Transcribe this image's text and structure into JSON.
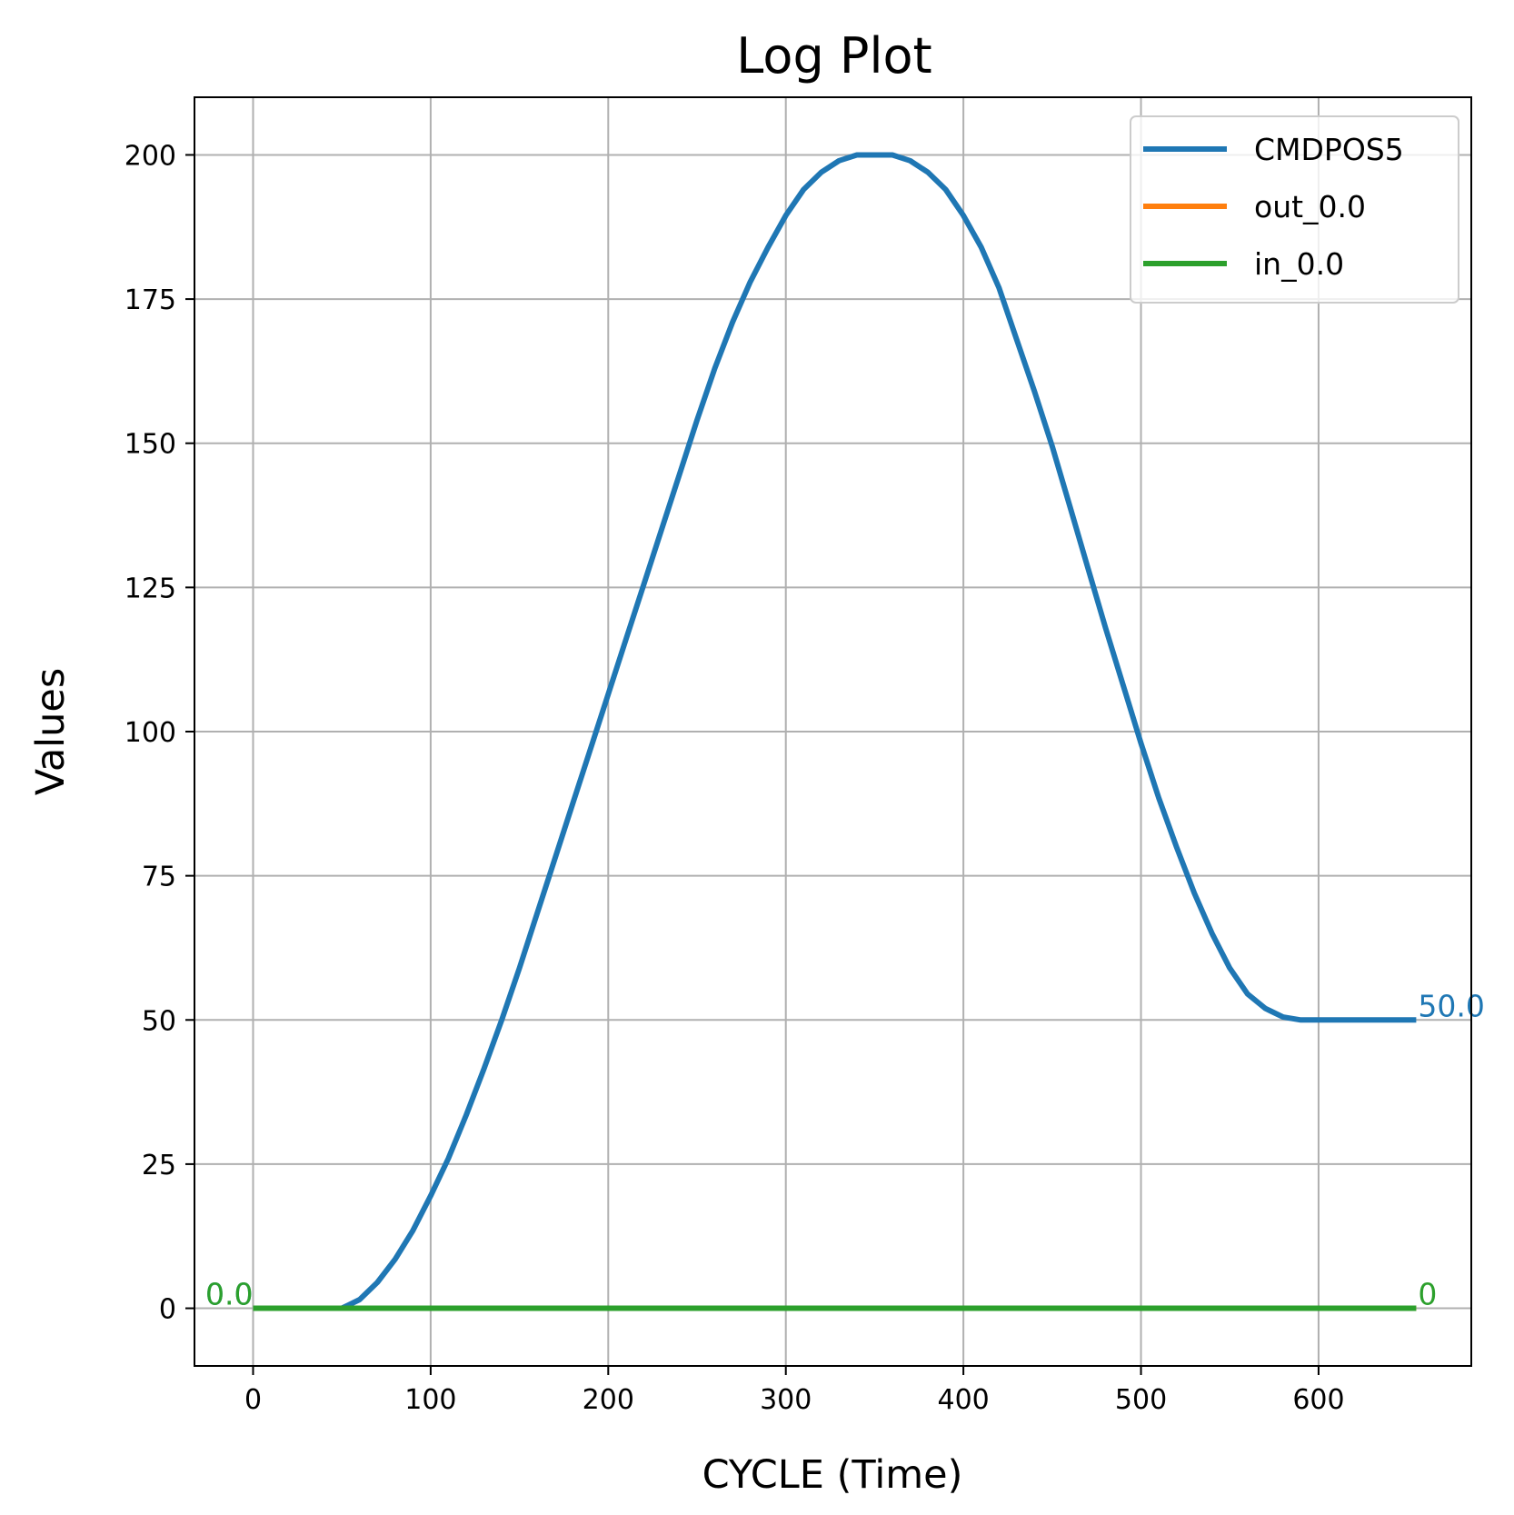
{
  "chart_data": {
    "type": "line",
    "title": "Log Plot",
    "xlabel": "CYCLE (Time)",
    "ylabel": "Values",
    "xlim": [
      -33,
      686
    ],
    "ylim": [
      -10,
      210
    ],
    "xticks": [
      0,
      100,
      200,
      300,
      400,
      500,
      600
    ],
    "yticks": [
      0,
      25,
      50,
      75,
      100,
      125,
      150,
      175,
      200
    ],
    "grid": true,
    "legend_position": "top-right",
    "series": [
      {
        "name": "CMDPOS5",
        "color": "#1f77b4",
        "x": [
          0,
          25,
          50,
          60,
          70,
          80,
          90,
          100,
          110,
          120,
          130,
          140,
          150,
          160,
          170,
          180,
          190,
          200,
          210,
          220,
          230,
          240,
          250,
          260,
          270,
          280,
          290,
          300,
          310,
          320,
          330,
          340,
          350,
          360,
          370,
          380,
          390,
          400,
          410,
          420,
          430,
          440,
          450,
          460,
          470,
          480,
          490,
          500,
          510,
          520,
          530,
          540,
          550,
          560,
          570,
          580,
          590,
          600,
          625,
          655
        ],
        "y": [
          0,
          0,
          0,
          1.5,
          4.5,
          8.5,
          13.5,
          19.5,
          26,
          33.5,
          41.5,
          50,
          59,
          68.5,
          78,
          87.5,
          97,
          106.5,
          116,
          125.5,
          135,
          144.5,
          154,
          163,
          171,
          178,
          184,
          189.5,
          194,
          197,
          199,
          200,
          200,
          200,
          199,
          197,
          194,
          189.5,
          184,
          177,
          168,
          159,
          149.5,
          139,
          128.5,
          118,
          108,
          98,
          88.5,
          80,
          72,
          65,
          59,
          54.5,
          52,
          50.5,
          50,
          50,
          50,
          50
        ]
      },
      {
        "name": "out_0.0",
        "color": "#ff7f0e",
        "x": [
          0,
          655
        ],
        "y": [
          0,
          0
        ]
      },
      {
        "name": "in_0.0",
        "color": "#2ca02c",
        "x": [
          0,
          655
        ],
        "y": [
          0,
          0
        ]
      }
    ],
    "annotations": [
      {
        "text": "0.0",
        "x": 0,
        "y": 0,
        "anchor": "end",
        "color": "#1f77b4"
      },
      {
        "text": "0.0",
        "x": 0,
        "y": 0,
        "anchor": "end",
        "color": "#2ca02c"
      },
      {
        "text": "50.0",
        "x": 655,
        "y": 50,
        "anchor": "start",
        "color": "#1f77b4"
      },
      {
        "text": "0",
        "x": 655,
        "y": 0,
        "anchor": "start",
        "color": "#2ca02c"
      }
    ]
  }
}
